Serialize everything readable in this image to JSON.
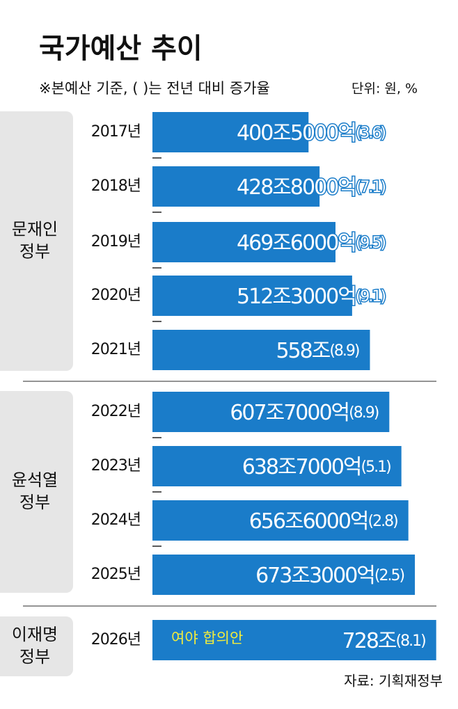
{
  "chart_data": {
    "type": "bar",
    "orientation": "horizontal",
    "title": "국가예산 추이",
    "subtitle": "※본예산 기준, ( )는 전년 대비 증가율",
    "unit": "단위: 원, %",
    "source": "자료: 기획재정부",
    "color": "#1a7cc9",
    "categories": [
      "2017년",
      "2018년",
      "2019년",
      "2020년",
      "2021년",
      "2022년",
      "2023년",
      "2024년",
      "2025년",
      "2026년"
    ],
    "values": [
      400.5,
      428.8,
      469.6,
      512.3,
      558,
      607.7,
      638.7,
      656.6,
      673.3,
      728
    ],
    "value_labels": [
      "400조5000억",
      "428조8000억",
      "469조6000억",
      "512조3000억",
      "558조",
      "607조7000억",
      "638조7000억",
      "656조6000억",
      "673조3000억",
      "728조"
    ],
    "growth": [
      3.6,
      7.1,
      9.5,
      9.1,
      8.9,
      8.9,
      5.1,
      2.8,
      2.5,
      8.1
    ],
    "growth_labels": [
      "(3.6)",
      "(7.1)",
      "(9.5)",
      "(9.1)",
      "(8.9)",
      "(8.9)",
      "(5.1)",
      "(2.8)",
      "(2.5)",
      "(8.1)"
    ],
    "groups": [
      {
        "lines": [
          "문재인",
          "정부"
        ],
        "members": 5
      },
      {
        "lines": [
          "윤석열",
          "정부"
        ],
        "members": 4
      },
      {
        "lines": [
          "이재명",
          "정부"
        ],
        "members": 1
      }
    ],
    "annotations": [
      {
        "index": 9,
        "text": "여야 합의안",
        "color": "#f2ec3c"
      }
    ]
  }
}
